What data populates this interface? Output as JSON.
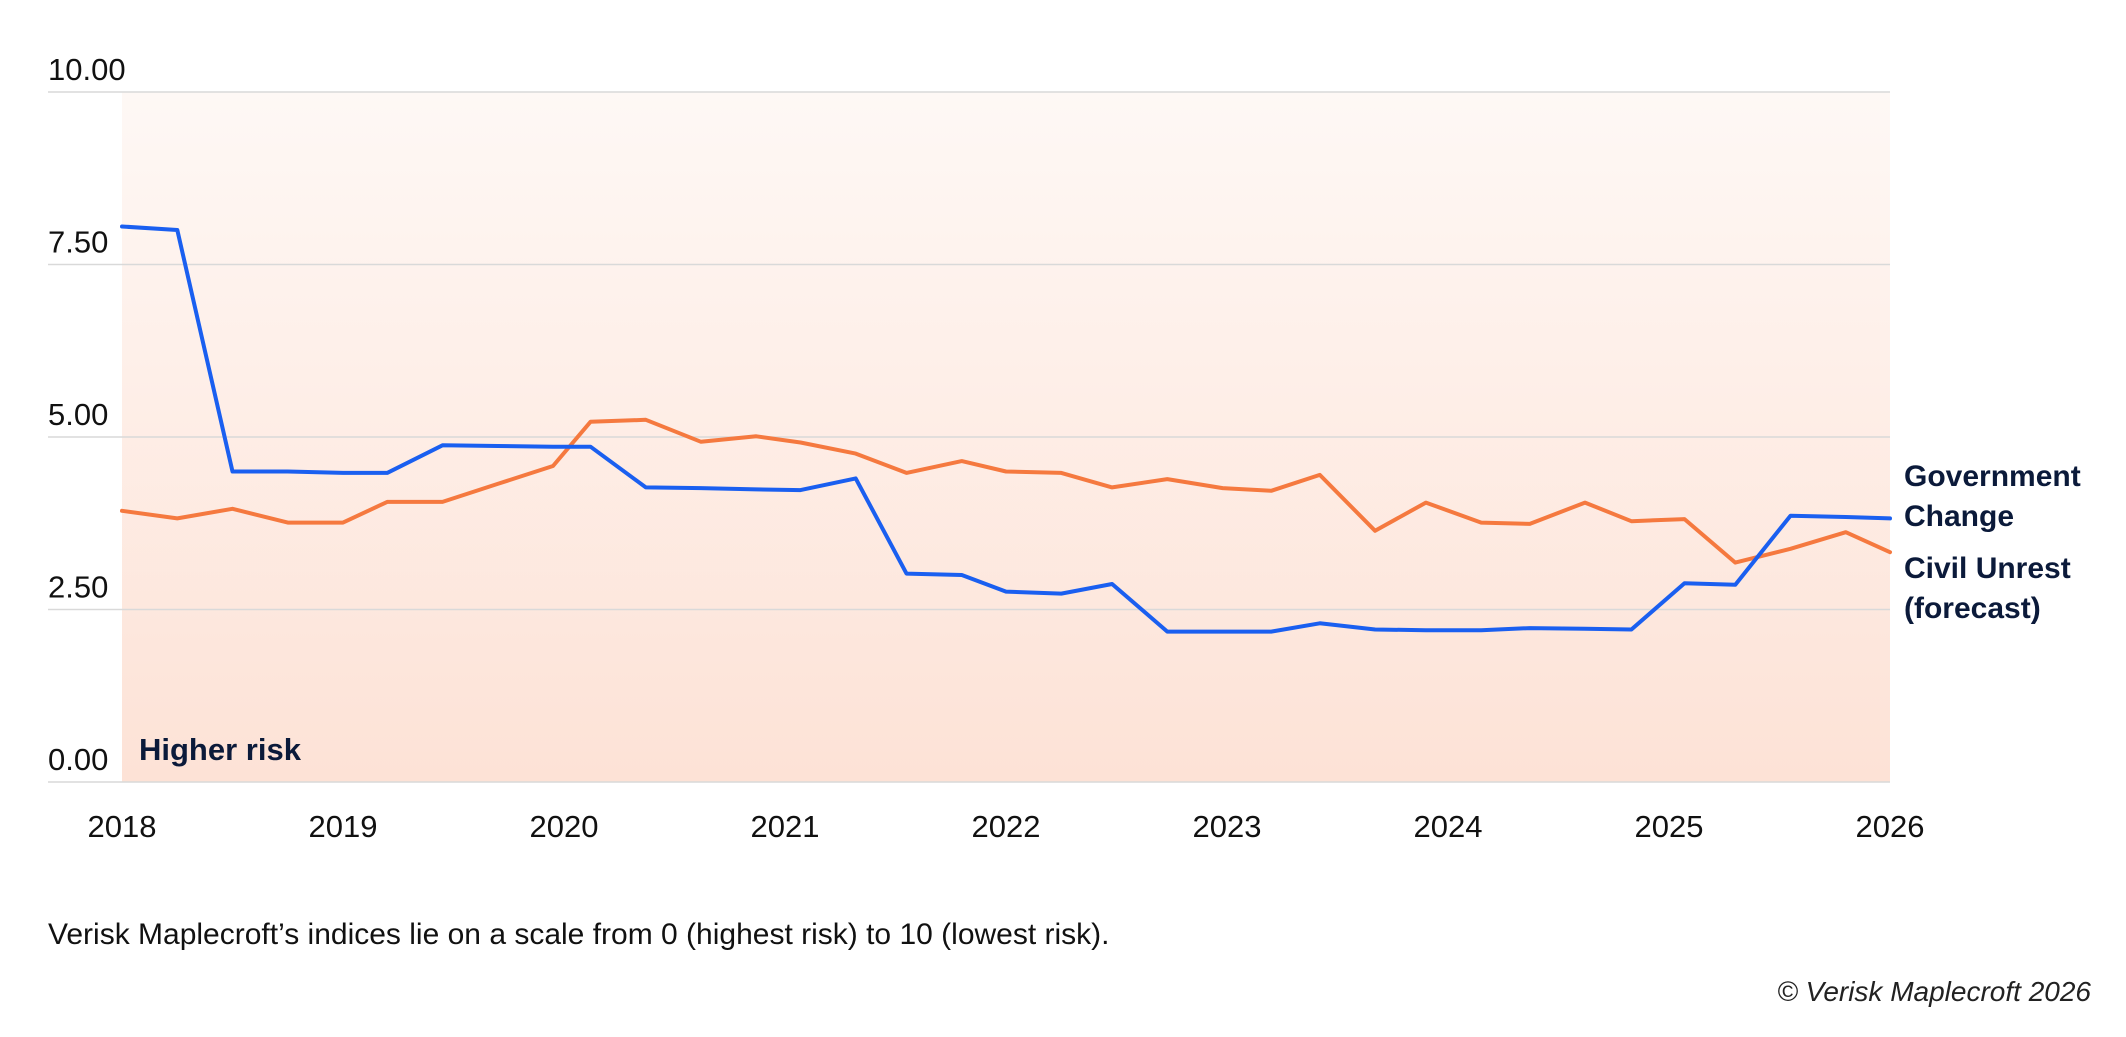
{
  "chart_data": {
    "type": "line",
    "y_ticks": [
      "0.00",
      "2.50",
      "5.00",
      "7.50",
      "10.00"
    ],
    "ylim": [
      0,
      10
    ],
    "x_ticks": [
      "2018",
      "2019",
      "2020",
      "2021",
      "2022",
      "2023",
      "2024",
      "2025",
      "2026"
    ],
    "xlim": [
      2018.0,
      2026.0
    ],
    "grid": true,
    "shaded_region_label": "Higher risk",
    "series": [
      {
        "name": "Government Change",
        "label_lines": [
          "Government",
          "Change"
        ],
        "color": "#1a5ff0",
        "x": [
          2018.0,
          2018.25,
          2018.5,
          2018.75,
          2019.0,
          2019.2,
          2019.45,
          2019.7,
          2019.95,
          2020.12,
          2020.37,
          2020.62,
          2020.87,
          2021.07,
          2021.32,
          2021.55,
          2021.8,
          2022.0,
          2022.25,
          2022.48,
          2022.73,
          2022.98,
          2023.2,
          2023.42,
          2023.67,
          2023.9,
          2024.15,
          2024.37,
          2024.62,
          2024.83,
          2025.07,
          2025.3,
          2025.55,
          2025.8,
          2026.0
        ],
        "y": [
          8.05,
          8.0,
          4.5,
          4.5,
          4.48,
          4.48,
          4.88,
          4.87,
          4.86,
          4.86,
          4.27,
          4.26,
          4.24,
          4.23,
          4.4,
          3.02,
          3.0,
          2.76,
          2.73,
          2.87,
          2.18,
          2.18,
          2.18,
          2.3,
          2.21,
          2.2,
          2.2,
          2.23,
          2.22,
          2.21,
          2.88,
          2.86,
          3.86,
          3.84,
          3.82
        ]
      },
      {
        "name": "Civil Unrest (forecast)",
        "label_lines": [
          "Civil Unrest",
          "(forecast)"
        ],
        "color": "#f5793f",
        "x": [
          2018.0,
          2018.25,
          2018.5,
          2018.75,
          2019.0,
          2019.2,
          2019.45,
          2019.7,
          2019.95,
          2020.12,
          2020.37,
          2020.62,
          2020.87,
          2021.07,
          2021.32,
          2021.55,
          2021.8,
          2022.0,
          2022.25,
          2022.48,
          2022.73,
          2022.98,
          2023.2,
          2023.42,
          2023.67,
          2023.9,
          2024.15,
          2024.37,
          2024.62,
          2024.83,
          2025.07,
          2025.3,
          2025.55,
          2025.8,
          2026.0
        ],
        "y": [
          3.93,
          3.82,
          3.96,
          3.76,
          3.76,
          4.06,
          4.06,
          4.32,
          4.58,
          5.22,
          5.25,
          4.93,
          5.01,
          4.92,
          4.76,
          4.48,
          4.65,
          4.5,
          4.48,
          4.27,
          4.39,
          4.26,
          4.22,
          4.45,
          3.64,
          4.05,
          3.76,
          3.74,
          4.05,
          3.78,
          3.81,
          3.18,
          3.38,
          3.62,
          3.33
        ]
      }
    ]
  },
  "footnote": "Verisk Maplecroft’s indices lie on a scale from 0 (highest risk) to 10 (lowest risk).",
  "copyright": "© Verisk Maplecroft 2026"
}
